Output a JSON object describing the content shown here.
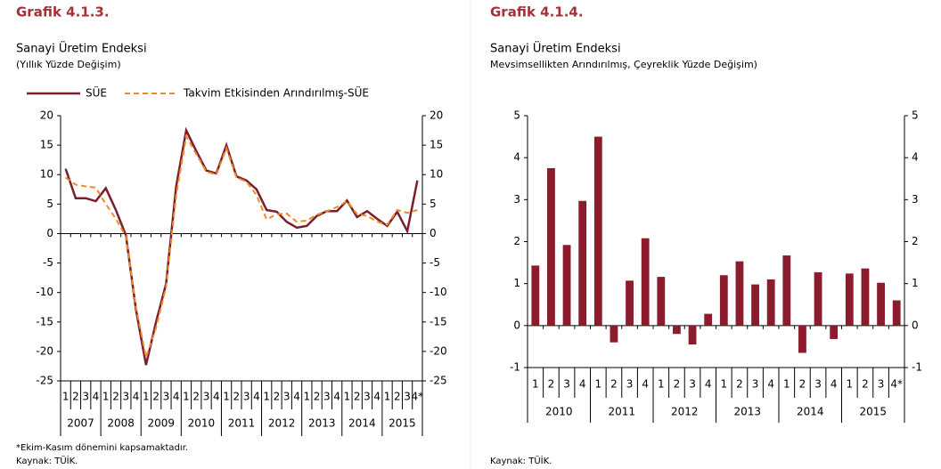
{
  "chart_data": [
    {
      "type": "line",
      "title": "Grafik 4.1.3.",
      "subtitle": "Sanayi Üretim Endeksi",
      "subtitle2": "(Yıllık Yüzde Değişim)",
      "categories": [
        "1",
        "2",
        "3",
        "4",
        "1",
        "2",
        "3",
        "4",
        "1",
        "2",
        "3",
        "4",
        "1",
        "2",
        "3",
        "4",
        "1",
        "2",
        "3",
        "4",
        "1",
        "2",
        "3",
        "4",
        "1",
        "2",
        "3",
        "4",
        "1",
        "2",
        "3",
        "4",
        "1",
        "2",
        "3",
        "4*"
      ],
      "years": [
        "2007",
        "2008",
        "2009",
        "2010",
        "2011",
        "2012",
        "2013",
        "2014",
        "2015"
      ],
      "series": [
        {
          "name": "SÜE",
          "color": "#7b1e2e",
          "dash": false,
          "values": [
            11,
            6,
            6,
            5.5,
            7.7,
            4,
            -0.3,
            -12.9,
            -22.3,
            -15,
            -8.5,
            8,
            17.5,
            14,
            10.7,
            10.2,
            15,
            9.7,
            9,
            7.5,
            4,
            3.7,
            2,
            1,
            1.3,
            3,
            3.8,
            3.8,
            5.6,
            2.8,
            3.8,
            2.5,
            1.3,
            3.7,
            0.4,
            9
          ]
        },
        {
          "name": "Takvim Etkisinden Arındırılmış-SÜE",
          "color": "#f08a24",
          "dash": true,
          "values": [
            9.5,
            8.3,
            8,
            7.8,
            5,
            2.5,
            -0.5,
            -12.5,
            -21,
            -16,
            -9,
            6.5,
            16.5,
            13.5,
            10.5,
            10,
            14.5,
            9.5,
            8.8,
            6.5,
            2.4,
            3.3,
            3.4,
            2,
            2.2,
            3.2,
            3.8,
            4.5,
            5.5,
            3.3,
            3,
            2,
            1.5,
            4,
            3.5,
            4
          ]
        }
      ],
      "ylim": [
        -25,
        20
      ],
      "yticks": [
        -25,
        -20,
        -15,
        -10,
        -5,
        0,
        5,
        10,
        15,
        20
      ],
      "y2lim": [
        -25,
        20
      ],
      "y2ticks": [
        -25,
        -20,
        -15,
        -10,
        -5,
        0,
        5,
        10,
        15,
        20
      ],
      "note": "*Ekim-Kasım dönemini kapsamaktadır.",
      "source": "Kaynak: TÜİK."
    },
    {
      "type": "bar",
      "title": "Grafik 4.1.4.",
      "subtitle": "Sanayi Üretim Endeksi",
      "subtitle2": " Mevsimsellikten Arındırılmış, Çeyreklik Yüzde Değişim)",
      "categories": [
        "1",
        "2",
        "3",
        "4",
        "1",
        "2",
        "3",
        "4",
        "1",
        "2",
        "3",
        "4",
        "1",
        "2",
        "3",
        "4",
        "1",
        "2",
        "3",
        "4",
        "1",
        "2",
        "3",
        "4*"
      ],
      "years": [
        "2010",
        "2011",
        "2012",
        "2013",
        "2014",
        "2015"
      ],
      "values": [
        1.43,
        3.75,
        1.92,
        2.97,
        4.5,
        -0.4,
        1.07,
        2.08,
        1.16,
        -0.2,
        -0.45,
        0.28,
        1.2,
        1.53,
        0.98,
        1.1,
        1.67,
        -0.65,
        1.27,
        -0.32,
        1.24,
        1.36,
        1.02,
        0.6
      ],
      "color": "#8c1c2c",
      "ylim": [
        -1,
        5
      ],
      "yticks": [
        -1,
        0,
        1,
        2,
        3,
        4,
        5
      ],
      "y2lim": [
        -1,
        5
      ],
      "y2ticks": [
        -1,
        0,
        1,
        2,
        3,
        4,
        5
      ],
      "source": "Kaynak: TÜİK."
    }
  ]
}
